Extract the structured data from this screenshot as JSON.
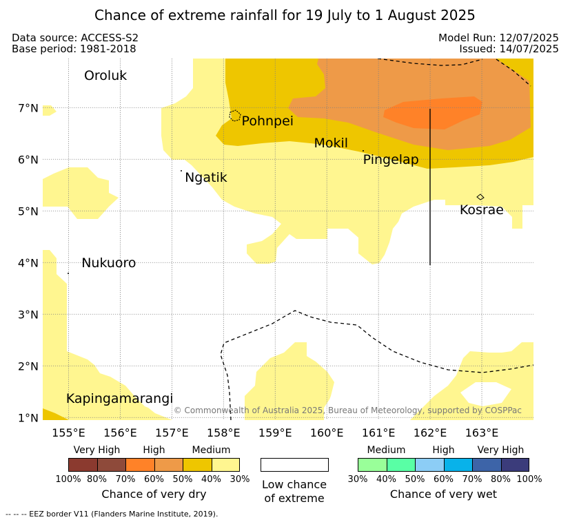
{
  "title": "Chance of extreme rainfall for 19 July to 1 August 2025",
  "header": {
    "data_source": "Data source: ACCESS-S2",
    "base_period": "Base period: 1981-2018",
    "model_run": "Model Run: 12/07/2025",
    "issued": "Issued: 14/07/2025"
  },
  "map": {
    "lon_range": [
      154.5,
      164.0
    ],
    "lat_range": [
      0.95,
      7.95
    ],
    "x_ticks": [
      {
        "value": 155,
        "label": "155°E"
      },
      {
        "value": 156,
        "label": "156°E"
      },
      {
        "value": 157,
        "label": "157°E"
      },
      {
        "value": 158,
        "label": "158°E"
      },
      {
        "value": 159,
        "label": "159°E"
      },
      {
        "value": 160,
        "label": "160°E"
      },
      {
        "value": 161,
        "label": "161°E"
      },
      {
        "value": 162,
        "label": "162°E"
      },
      {
        "value": 163,
        "label": "163°E"
      }
    ],
    "y_ticks": [
      {
        "value": 1,
        "label": "1°N"
      },
      {
        "value": 2,
        "label": "2°N"
      },
      {
        "value": 3,
        "label": "3°N"
      },
      {
        "value": 4,
        "label": "4°N"
      },
      {
        "value": 5,
        "label": "5°N"
      },
      {
        "value": 6,
        "label": "6°N"
      },
      {
        "value": 7,
        "label": "7°N"
      }
    ],
    "places": [
      {
        "name": "Oroluk",
        "lon": 155.3,
        "lat": 7.6
      },
      {
        "name": "Pohnpei",
        "lon": 158.35,
        "lat": 6.72
      },
      {
        "name": "Mokil",
        "lon": 159.75,
        "lat": 6.3
      },
      {
        "name": "Pingelap",
        "lon": 160.7,
        "lat": 5.98
      },
      {
        "name": "Ngatik",
        "lon": 157.25,
        "lat": 5.63
      },
      {
        "name": "Kosrae",
        "lon": 162.57,
        "lat": 5.0
      },
      {
        "name": "Nukuoro",
        "lon": 155.25,
        "lat": 3.98
      },
      {
        "name": "Kapingamarangi",
        "lon": 154.95,
        "lat": 1.35
      }
    ],
    "copyright": "© Commonwealth of Australia 2025, Bureau of Meteorology, supported by COSPPac"
  },
  "legend": {
    "dry": {
      "categories": [
        {
          "label": "Very High",
          "span": 2
        },
        {
          "label": "High",
          "span": 2
        },
        {
          "label": "Medium",
          "span": 2
        }
      ],
      "colors": [
        "#8b3a2f",
        "#8e4a3a",
        "#ff8228",
        "#ee9a48",
        "#eec600",
        "#fff690"
      ],
      "ticks": [
        "100%",
        "80%",
        "70%",
        "60%",
        "50%",
        "40%",
        "30%"
      ],
      "title": "Chance of very dry"
    },
    "low": {
      "title_line1": "Low chance",
      "title_line2": "of extreme",
      "color": "#ffffff"
    },
    "wet": {
      "categories": [
        {
          "label": "Medium",
          "span": 2
        },
        {
          "label": "High",
          "span": 2
        },
        {
          "label": "Very High",
          "span": 2
        }
      ],
      "colors": [
        "#99ff99",
        "#59ffa5",
        "#8ccdf6",
        "#08b2ea",
        "#3d64a8",
        "#3b3c7b"
      ],
      "ticks": [
        "30%",
        "40%",
        "50%",
        "60%",
        "70%",
        "80%",
        "100%"
      ],
      "title": "Chance of very wet"
    }
  },
  "footnote": "--  --  -- EEZ border V11 (Flanders Marine Institute, 2019)."
}
